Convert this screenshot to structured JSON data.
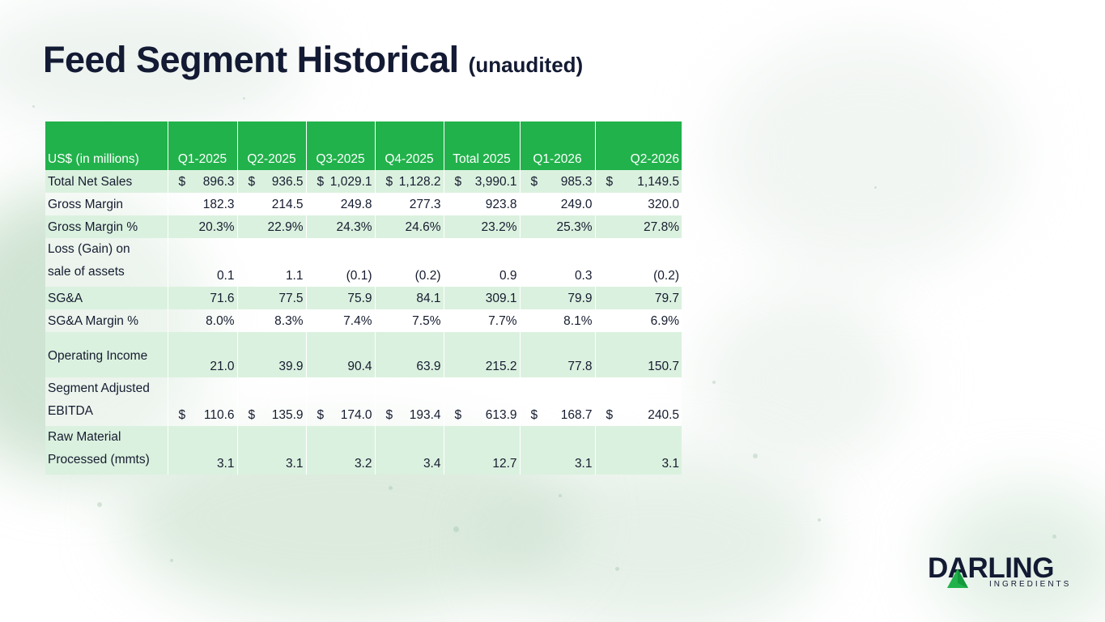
{
  "title": {
    "main": "Feed Segment Historical",
    "sub": "(unaudited)"
  },
  "table": {
    "headers": [
      "US$ (in millions)",
      "Q1-2025",
      "Q2-2025",
      "Q3-2025",
      "Q4-2025",
      "Total 2025",
      "Q1-2026",
      "Q2-2026"
    ],
    "rows": [
      {
        "label_line1": "Total Net Sales",
        "label_line2": "",
        "cells": [
          {
            "dollar": "$",
            "value": "896.3"
          },
          {
            "dollar": "$",
            "value": "936.5"
          },
          {
            "dollar": "$",
            "value": "1,029.1"
          },
          {
            "dollar": "$",
            "value": "1,128.2"
          },
          {
            "dollar": "$",
            "value": "3,990.1"
          },
          {
            "dollar": "$",
            "value": "985.3"
          },
          {
            "dollar": "$",
            "value": "1,149.5"
          }
        ]
      },
      {
        "label_line1": "Gross Margin",
        "label_line2": "",
        "cells": [
          {
            "dollar": "",
            "value": "182.3"
          },
          {
            "dollar": "",
            "value": "214.5"
          },
          {
            "dollar": "",
            "value": "249.8"
          },
          {
            "dollar": "",
            "value": "277.3"
          },
          {
            "dollar": "",
            "value": "923.8"
          },
          {
            "dollar": "",
            "value": "249.0"
          },
          {
            "dollar": "",
            "value": "320.0"
          }
        ]
      },
      {
        "label_line1": "Gross Margin %",
        "label_line2": "",
        "cells": [
          {
            "dollar": "",
            "value": "20.3%"
          },
          {
            "dollar": "",
            "value": "22.9%"
          },
          {
            "dollar": "",
            "value": "24.3%"
          },
          {
            "dollar": "",
            "value": "24.6%"
          },
          {
            "dollar": "",
            "value": "23.2%"
          },
          {
            "dollar": "",
            "value": "25.3%"
          },
          {
            "dollar": "",
            "value": "27.8%"
          }
        ]
      },
      {
        "label_line1": "Loss (Gain) on",
        "label_line2": "sale of assets",
        "cells": [
          {
            "dollar": "",
            "value": "0.1"
          },
          {
            "dollar": "",
            "value": "1.1"
          },
          {
            "dollar": "",
            "value": "(0.1)"
          },
          {
            "dollar": "",
            "value": "(0.2)"
          },
          {
            "dollar": "",
            "value": "0.9"
          },
          {
            "dollar": "",
            "value": "0.3"
          },
          {
            "dollar": "",
            "value": "(0.2)"
          }
        ]
      },
      {
        "label_line1": "SG&A",
        "label_line2": "",
        "cells": [
          {
            "dollar": "",
            "value": "71.6"
          },
          {
            "dollar": "",
            "value": "77.5"
          },
          {
            "dollar": "",
            "value": "75.9"
          },
          {
            "dollar": "",
            "value": "84.1"
          },
          {
            "dollar": "",
            "value": "309.1"
          },
          {
            "dollar": "",
            "value": "79.9"
          },
          {
            "dollar": "",
            "value": "79.7"
          }
        ]
      },
      {
        "label_line1": "SG&A Margin %",
        "label_line2": "",
        "cells": [
          {
            "dollar": "",
            "value": "8.0%"
          },
          {
            "dollar": "",
            "value": "8.3%"
          },
          {
            "dollar": "",
            "value": "7.4%"
          },
          {
            "dollar": "",
            "value": "7.5%"
          },
          {
            "dollar": "",
            "value": "7.7%"
          },
          {
            "dollar": "",
            "value": "8.1%"
          },
          {
            "dollar": "",
            "value": "6.9%"
          }
        ]
      },
      {
        "label_line1": "Operating Income",
        "label_line2": "",
        "cells": [
          {
            "dollar": "",
            "value": "21.0"
          },
          {
            "dollar": "",
            "value": "39.9"
          },
          {
            "dollar": "",
            "value": "90.4"
          },
          {
            "dollar": "",
            "value": "63.9"
          },
          {
            "dollar": "",
            "value": "215.2"
          },
          {
            "dollar": "",
            "value": "77.8"
          },
          {
            "dollar": "",
            "value": "150.7"
          }
        ]
      },
      {
        "label_line1": "Segment Adjusted",
        "label_line2": "EBITDA",
        "cells": [
          {
            "dollar": "$",
            "value": "110.6"
          },
          {
            "dollar": "$",
            "value": "135.9"
          },
          {
            "dollar": "$",
            "value": "174.0"
          },
          {
            "dollar": "$",
            "value": "193.4"
          },
          {
            "dollar": "$",
            "value": "613.9"
          },
          {
            "dollar": "$",
            "value": "168.7"
          },
          {
            "dollar": "$",
            "value": "240.5"
          }
        ]
      },
      {
        "label_line1": "Raw Material",
        "label_line2": "Processed (mmts)",
        "cells": [
          {
            "dollar": "",
            "value": "3.1"
          },
          {
            "dollar": "",
            "value": "3.1"
          },
          {
            "dollar": "",
            "value": "3.2"
          },
          {
            "dollar": "",
            "value": "3.4"
          },
          {
            "dollar": "",
            "value": "12.7"
          },
          {
            "dollar": "",
            "value": "3.1"
          },
          {
            "dollar": "",
            "value": "3.1"
          }
        ]
      }
    ]
  },
  "logo": {
    "word": "DARLING",
    "sub": "INGREDIENTS",
    "icon": "triangle-mark-icon"
  },
  "colors": {
    "header_green": "#21b24b",
    "row_shade": "#dbf1df",
    "title_navy": "#131a33",
    "logo_green": "#21b24b"
  }
}
